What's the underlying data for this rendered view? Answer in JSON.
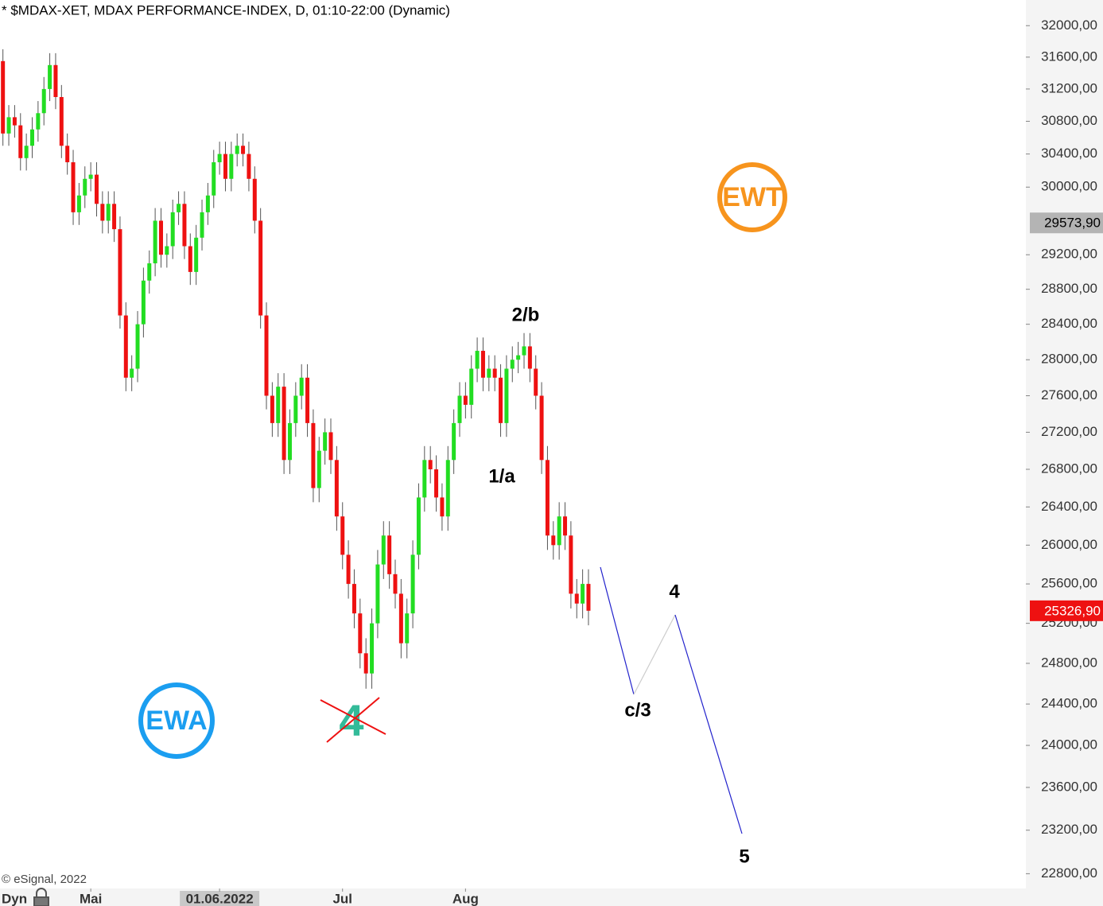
{
  "chart_data": {
    "type": "candlestick",
    "title": "* $MDAX-XET, MDAX PERFORMANCE-INDEX, D, 01:10-22:00 (Dynamic)",
    "source": "© eSignal, 2022",
    "mode": "Dyn",
    "log_scale": true,
    "up_color": "#22dd22",
    "down_color": "#ee1111",
    "open": [
      31550,
      30650,
      30850,
      30750,
      30350,
      30500,
      30700,
      30900,
      31200,
      31500,
      31100,
      30500,
      30300,
      29700,
      29900,
      30100,
      30150,
      29800,
      29600,
      29800,
      29500,
      28500,
      27800,
      27900,
      28400,
      28900,
      29100,
      29600,
      29200,
      29300,
      29700,
      29800,
      29300,
      29000,
      29400,
      29700,
      29900,
      30300,
      30400,
      30100,
      30400,
      30500,
      30400,
      30100,
      29600,
      28500,
      27600,
      27300,
      27700,
      26900,
      27300,
      27600,
      27800,
      27300,
      26600,
      27000,
      27200,
      26900,
      26300,
      25900,
      25600,
      25300,
      24900,
      24700,
      25200,
      25800,
      26100,
      25700,
      25500,
      25000,
      25300,
      25900,
      26500,
      26900,
      26800,
      26500,
      26300,
      26900,
      27300,
      27600,
      27500,
      27900,
      28100,
      27800,
      27900,
      27800,
      27300,
      27900,
      28000,
      28050,
      28150,
      27900,
      27600,
      26900,
      26100,
      26000,
      26300,
      26100,
      25500,
      25400,
      25600
    ],
    "high": [
      31700,
      31000,
      31000,
      30900,
      30650,
      30850,
      31050,
      31350,
      31650,
      31650,
      31250,
      30650,
      30450,
      30050,
      30250,
      30300,
      30300,
      29950,
      29950,
      29950,
      29650,
      28650,
      28050,
      28550,
      29050,
      29250,
      29750,
      29750,
      29450,
      29850,
      29950,
      29950,
      29450,
      29550,
      29850,
      30050,
      30450,
      30550,
      30550,
      30550,
      30650,
      30650,
      30550,
      30250,
      29750,
      28650,
      27750,
      27850,
      27850,
      27450,
      27750,
      27950,
      27950,
      27450,
      27150,
      27350,
      27350,
      27050,
      26450,
      26050,
      25750,
      25450,
      25050,
      25350,
      25950,
      26250,
      26250,
      25850,
      25650,
      25450,
      26050,
      26650,
      27050,
      27050,
      26950,
      26650,
      27050,
      27450,
      27750,
      27750,
      28050,
      28250,
      28250,
      28050,
      28050,
      27950,
      28050,
      28150,
      28200,
      28300,
      28300,
      28050,
      27750,
      27050,
      26250,
      26450,
      26450,
      26250,
      25650,
      25750,
      25750
    ],
    "low": [
      30500,
      30500,
      30600,
      30200,
      30200,
      30350,
      30550,
      30750,
      31050,
      30950,
      30350,
      30150,
      29550,
      29550,
      29750,
      29950,
      29650,
      29450,
      29450,
      29350,
      28350,
      27650,
      27650,
      27750,
      28250,
      28750,
      28950,
      29050,
      29050,
      29150,
      29550,
      29150,
      28850,
      28850,
      29250,
      29550,
      29750,
      30150,
      29950,
      29950,
      30250,
      30250,
      29950,
      29450,
      28350,
      27450,
      27150,
      27150,
      26750,
      26750,
      27150,
      27450,
      27150,
      26450,
      26450,
      26850,
      26750,
      26150,
      25750,
      25450,
      25150,
      24750,
      24550,
      24550,
      25050,
      25650,
      25550,
      25350,
      24850,
      24850,
      25150,
      25750,
      26350,
      26650,
      26350,
      26150,
      26150,
      26750,
      27150,
      27350,
      27350,
      27750,
      27650,
      27650,
      27650,
      27150,
      27150,
      27750,
      27850,
      27900,
      27750,
      27450,
      26750,
      25950,
      25850,
      25850,
      25950,
      25350,
      25250,
      25250,
      25180
    ],
    "close": [
      30650,
      30850,
      30750,
      30350,
      30500,
      30700,
      30900,
      31200,
      31500,
      31100,
      30500,
      30300,
      29700,
      29900,
      30100,
      30150,
      29800,
      29600,
      29800,
      29500,
      28500,
      27800,
      27900,
      28400,
      28900,
      29100,
      29600,
      29200,
      29300,
      29700,
      29800,
      29300,
      29000,
      29400,
      29700,
      29900,
      30300,
      30400,
      30100,
      30400,
      30500,
      30400,
      30100,
      29600,
      28500,
      27600,
      27300,
      27700,
      26900,
      27300,
      27600,
      27800,
      27300,
      26600,
      27000,
      27200,
      26900,
      26300,
      25900,
      25600,
      25300,
      24900,
      24700,
      25200,
      25800,
      26100,
      25700,
      25500,
      25000,
      25300,
      25900,
      26500,
      26900,
      26800,
      26500,
      26300,
      26900,
      27300,
      27600,
      27500,
      27900,
      28100,
      27800,
      27900,
      27800,
      27300,
      27900,
      28000,
      28050,
      28150,
      27900,
      27600,
      26900,
      26100,
      26000,
      26300,
      26100,
      25500,
      25400,
      25600,
      25326.9
    ],
    "xlim": [
      -0.5,
      174.7
    ],
    "xticks": [
      {
        "value": 15,
        "label": "Mai"
      },
      {
        "value": 37,
        "label": "01.06.2022"
      },
      {
        "value": 58,
        "label": "Jul"
      },
      {
        "value": 79,
        "label": "Aug"
      }
    ],
    "ylim": [
      22680,
      32330
    ],
    "yticks": [
      {
        "value": 32000,
        "label": "32000,00"
      },
      {
        "value": 31600,
        "label": "31600,00"
      },
      {
        "value": 31200,
        "label": "31200,00"
      },
      {
        "value": 30800,
        "label": "30800,00"
      },
      {
        "value": 30400,
        "label": "30400,00"
      },
      {
        "value": 30000,
        "label": "30000,00"
      },
      {
        "value": 29200,
        "label": "29200,00"
      },
      {
        "value": 28800,
        "label": "28800,00"
      },
      {
        "value": 28400,
        "label": "28400,00"
      },
      {
        "value": 28000,
        "label": "28000,00"
      },
      {
        "value": 27600,
        "label": "27600,00"
      },
      {
        "value": 27200,
        "label": "27200,00"
      },
      {
        "value": 26800,
        "label": "26800,00"
      },
      {
        "value": 26400,
        "label": "26400,00"
      },
      {
        "value": 26000,
        "label": "26000,00"
      },
      {
        "value": 25600,
        "label": "25600,00"
      },
      {
        "value": 25200,
        "label": "25200,00"
      },
      {
        "value": 24800,
        "label": "24800,00"
      },
      {
        "value": 24400,
        "label": "24400,00"
      },
      {
        "value": 24000,
        "label": "24000,00"
      },
      {
        "value": 23600,
        "label": "23600,00"
      },
      {
        "value": 23200,
        "label": "23200,00"
      },
      {
        "value": 22800,
        "label": "22800,00"
      }
    ],
    "price_labels": [
      {
        "value": 29573.9,
        "label": "29573,90",
        "color": "#b4b4b4"
      },
      {
        "value": 25326.9,
        "label": "25326,90",
        "color": "#ee1111"
      }
    ],
    "wave_labels": [
      "1/a",
      "2/b",
      "c/3",
      "4",
      "5",
      "4"
    ],
    "logos": [
      "EWT",
      "EWA"
    ]
  }
}
